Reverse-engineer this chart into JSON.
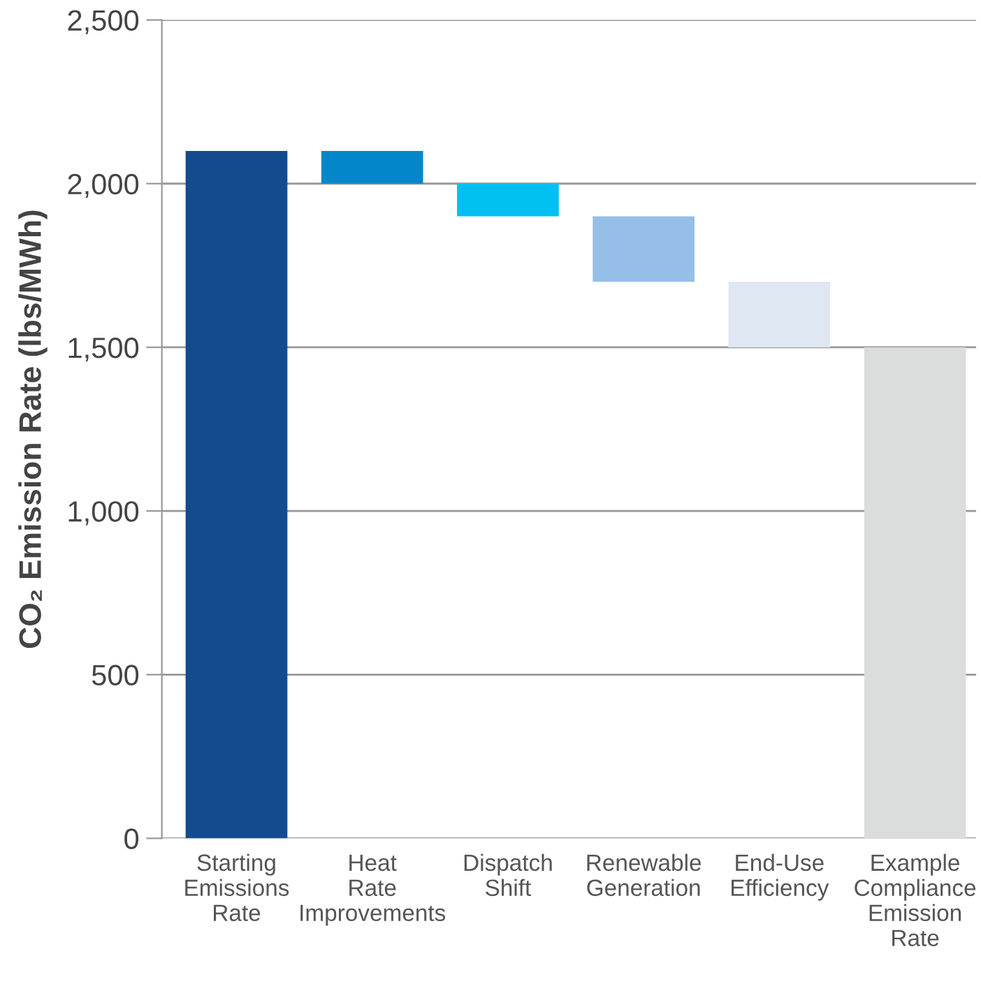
{
  "chart_data": {
    "type": "bar",
    "ylabel": "CO₂ Emission Rate (lbs/MWh)",
    "categories": [
      "Starting\nEmissions\nRate",
      "Heat\nRate\nImprovements",
      "Dispatch\nShift",
      "Renewable\nGeneration",
      "End-Use\nEfficiency",
      "Example\nCompliance\nEmission\nRate"
    ],
    "values": [
      2100,
      100,
      100,
      200,
      200,
      1500
    ],
    "base": [
      0,
      2000,
      1900,
      1700,
      1500,
      0
    ],
    "colors": [
      "#134b8d",
      "#0487ca",
      "#00c1f2",
      "#95bfe6",
      "#dfe7f2",
      "#dbdcdc"
    ],
    "ylim": [
      0,
      2500
    ],
    "yticks": [
      {
        "value": 0,
        "label": "0"
      },
      {
        "value": 500,
        "label": "500"
      },
      {
        "value": 1000,
        "label": "1,000"
      },
      {
        "value": 1500,
        "label": "1,500"
      },
      {
        "value": 2000,
        "label": "2,000"
      },
      {
        "value": 2500,
        "label": "2,500"
      }
    ],
    "grid": "y"
  }
}
